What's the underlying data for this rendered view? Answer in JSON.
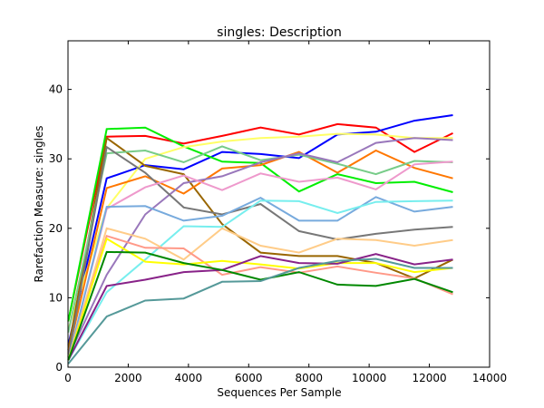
{
  "chart_data": {
    "type": "line",
    "title": "singles: Description",
    "xlabel": "Sequences Per Sample",
    "ylabel": "Rarefaction Measure: singles",
    "xlim": [
      0,
      14000
    ],
    "ylim": [
      0,
      47
    ],
    "xticks": [
      0,
      2000,
      4000,
      6000,
      8000,
      10000,
      12000,
      14000
    ],
    "yticks": [
      0,
      10,
      20,
      30,
      40
    ],
    "grid": false,
    "x": [
      10,
      1287,
      2564,
      3841,
      5118,
      6395,
      7672,
      8949,
      10226,
      11503,
      12780
    ],
    "series": [
      {
        "color": "#ff0000",
        "values": [
          6.6,
          33.2,
          33.3,
          32.2,
          33.3,
          34.5,
          33.5,
          35.0,
          34.5,
          31.0,
          33.7
        ]
      },
      {
        "color": "#0000ff",
        "values": [
          3.2,
          27.2,
          29.1,
          28.5,
          31.0,
          30.7,
          30.1,
          33.5,
          33.9,
          35.5,
          36.3
        ]
      },
      {
        "color": "#00ee00",
        "values": [
          6.6,
          34.3,
          34.5,
          31.8,
          29.6,
          29.4,
          25.3,
          27.8,
          26.5,
          26.7,
          25.2
        ]
      },
      {
        "color": "#ffff66",
        "values": [
          5.5,
          22.9,
          30.0,
          31.7,
          32.5,
          33.0,
          33.2,
          33.6,
          33.5,
          33.0,
          33.0
        ]
      },
      {
        "color": "#996600",
        "values": [
          2.5,
          33.0,
          29.0,
          27.8,
          20.6,
          16.5,
          16.0,
          16.0,
          15.0,
          12.8,
          15.5
        ]
      },
      {
        "color": "#ff7700",
        "values": [
          2.0,
          25.8,
          27.5,
          25.0,
          28.6,
          29.1,
          31.0,
          28.0,
          31.2,
          28.7,
          27.2
        ]
      },
      {
        "color": "#77cc88",
        "values": [
          5.0,
          30.8,
          31.2,
          29.5,
          31.8,
          29.8,
          30.6,
          29.3,
          27.8,
          29.7,
          29.5
        ]
      },
      {
        "color": "#9977bb",
        "values": [
          1.5,
          13.3,
          22.0,
          26.5,
          27.5,
          29.5,
          30.8,
          29.5,
          32.3,
          33.0,
          32.7
        ]
      },
      {
        "color": "#777777",
        "values": [
          1.5,
          31.7,
          28.0,
          23.0,
          22.0,
          23.5,
          19.6,
          18.4,
          19.2,
          19.8,
          20.2
        ]
      },
      {
        "color": "#ee99cc",
        "values": [
          1.0,
          22.8,
          25.9,
          27.6,
          25.5,
          27.9,
          26.7,
          27.3,
          25.6,
          29.2,
          29.6
        ]
      },
      {
        "color": "#77aadd",
        "values": [
          1.0,
          23.1,
          23.2,
          21.1,
          21.8,
          24.4,
          21.1,
          21.1,
          24.5,
          22.4,
          23.1
        ]
      },
      {
        "color": "#77eeee",
        "values": [
          1.0,
          10.8,
          15.5,
          20.3,
          20.2,
          24.0,
          23.9,
          22.2,
          23.8,
          23.9,
          24.0
        ]
      },
      {
        "color": "#ffcc88",
        "values": [
          1.0,
          20.0,
          18.5,
          15.5,
          20.0,
          17.5,
          16.5,
          18.5,
          18.3,
          17.5,
          18.3
        ]
      },
      {
        "color": "#ff9988",
        "values": [
          1.0,
          18.9,
          17.2,
          17.1,
          13.3,
          14.4,
          13.6,
          14.5,
          13.6,
          12.8,
          10.5
        ]
      },
      {
        "color": "#ffff00",
        "values": [
          1.0,
          18.5,
          15.2,
          14.8,
          15.3,
          14.8,
          14.2,
          15.0,
          15.0,
          13.7,
          14.3
        ]
      },
      {
        "color": "#882288",
        "values": [
          1.0,
          11.7,
          12.6,
          13.7,
          14.0,
          16.0,
          15.0,
          14.9,
          16.3,
          14.8,
          15.5
        ]
      },
      {
        "color": "#008800",
        "values": [
          1.0,
          16.6,
          16.5,
          15.0,
          14.0,
          12.6,
          13.7,
          11.9,
          11.7,
          12.7,
          10.8
        ]
      },
      {
        "color": "#559999",
        "values": [
          0.5,
          7.3,
          9.6,
          9.9,
          12.3,
          12.4,
          14.3,
          15.3,
          15.6,
          14.3,
          14.3
        ]
      }
    ]
  }
}
